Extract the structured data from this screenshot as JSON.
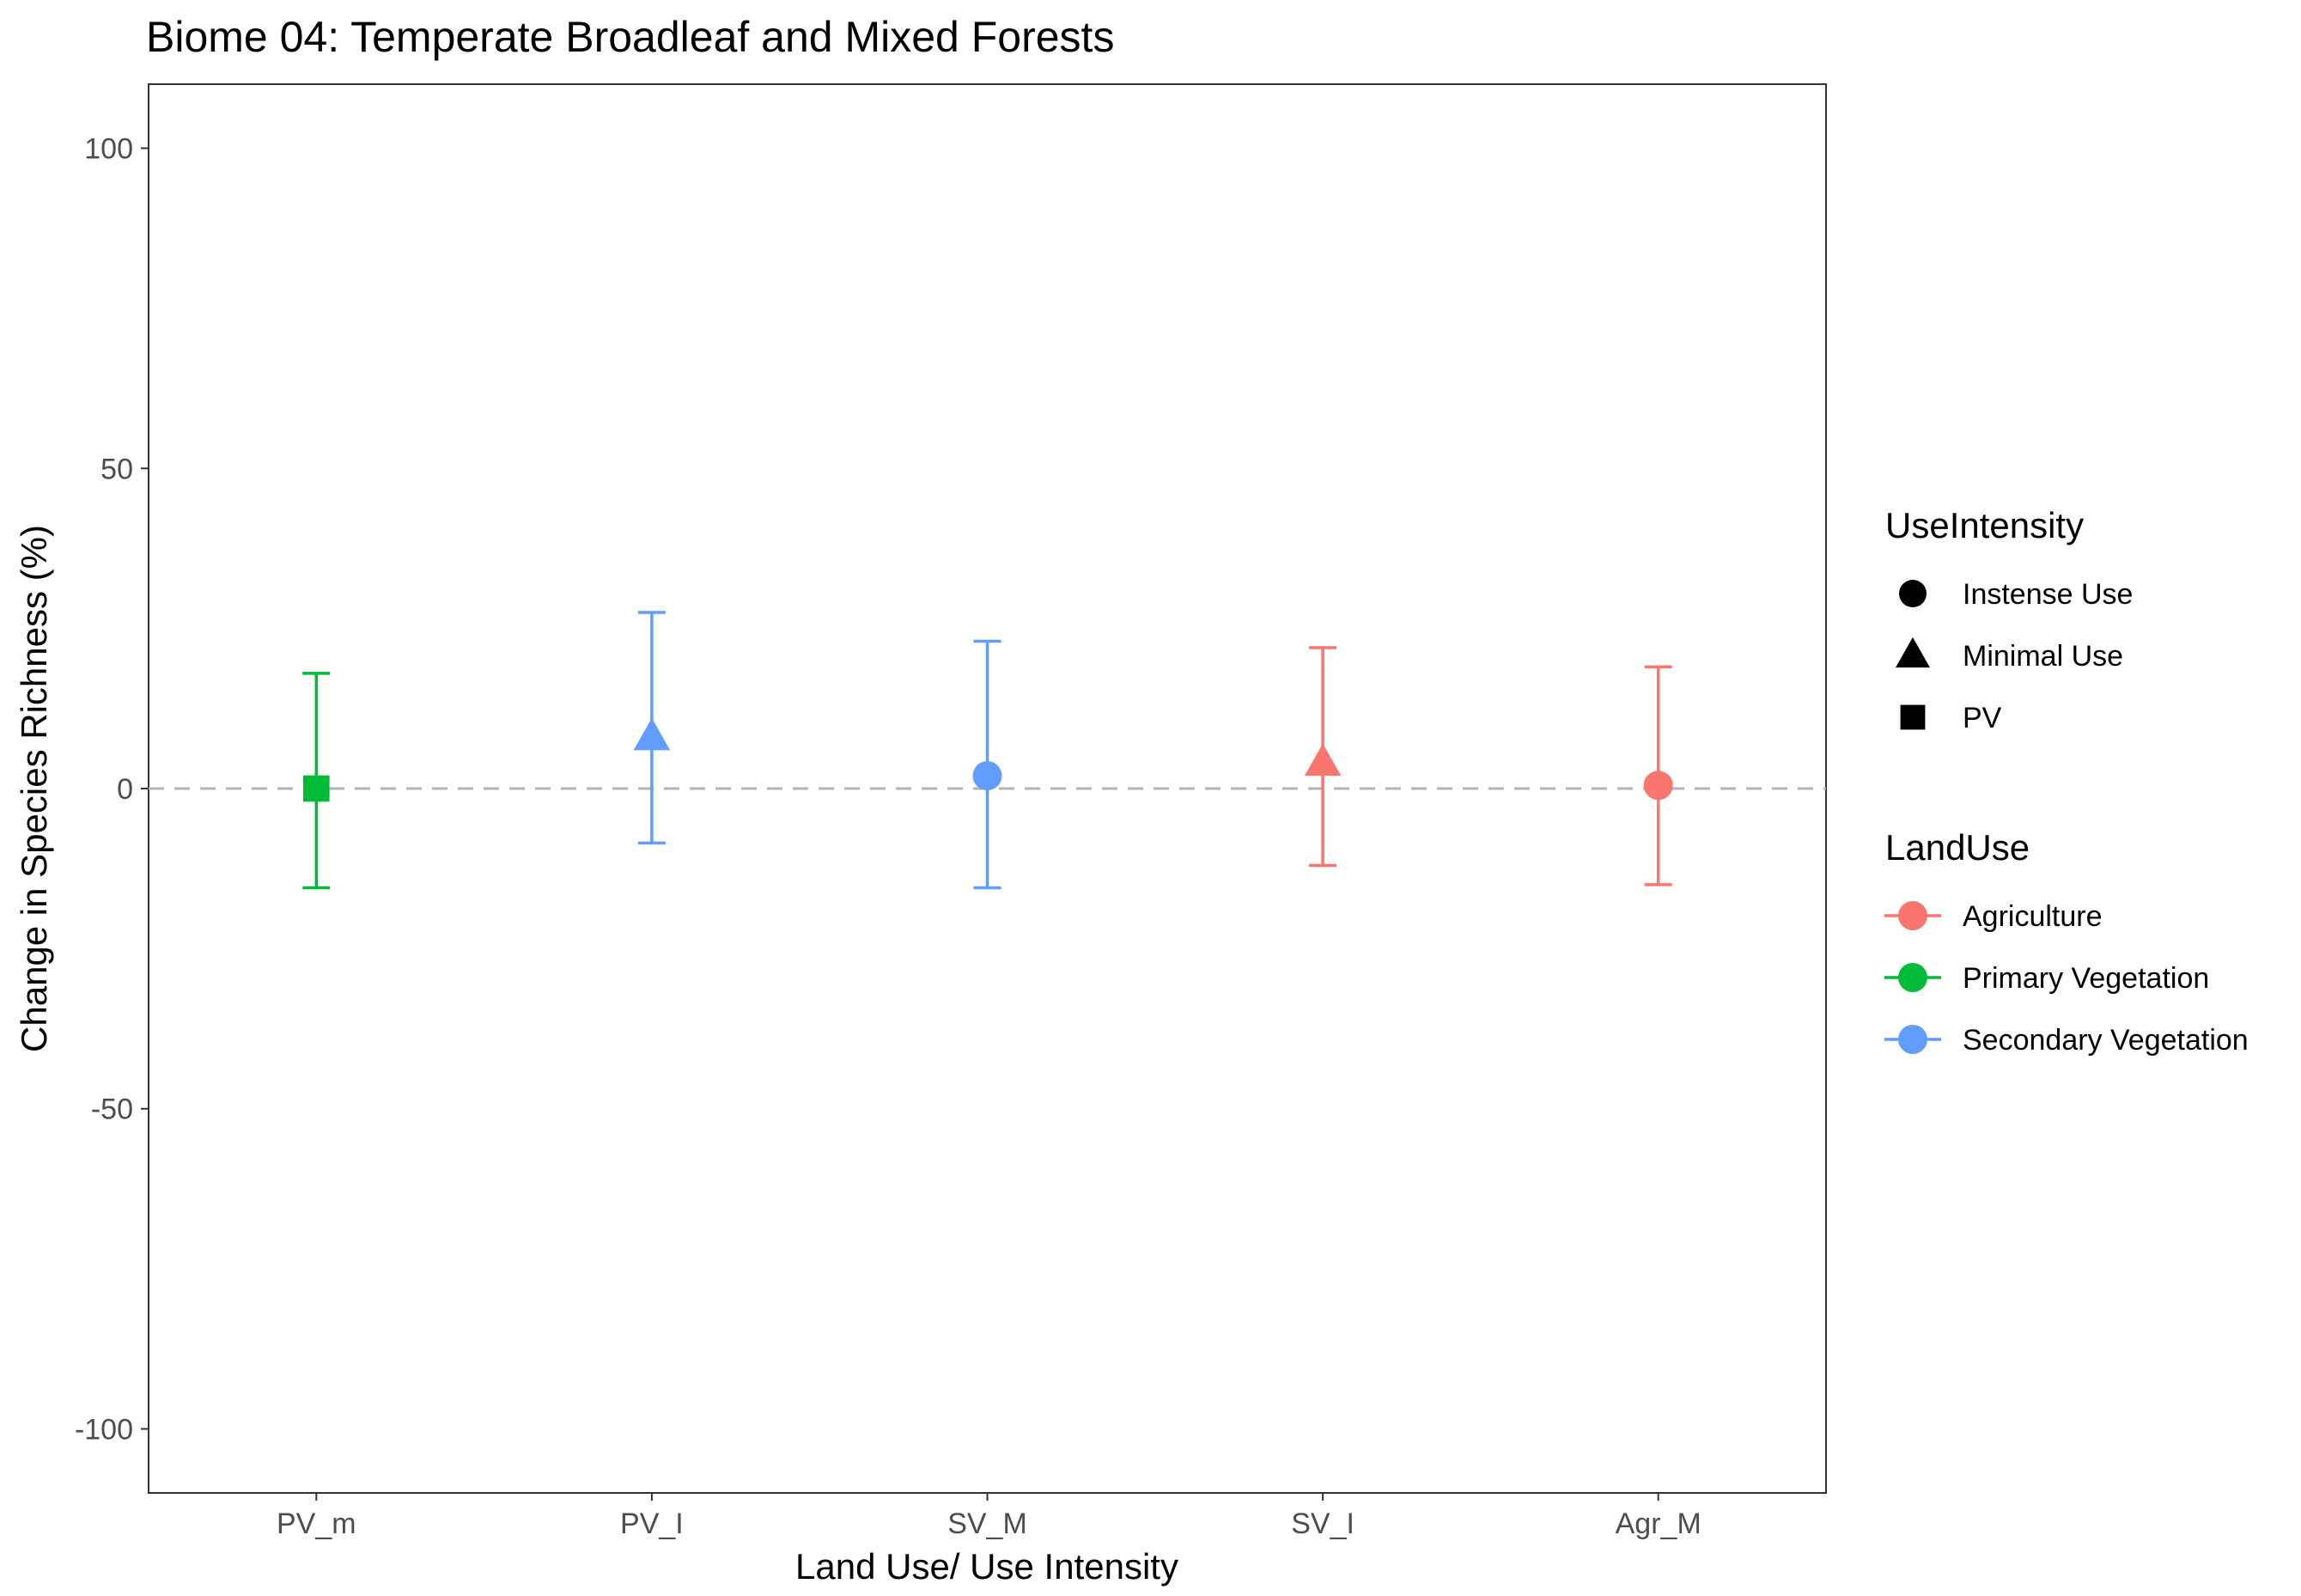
{
  "chart_data": {
    "type": "errorbar",
    "title": "Biome 04: Temperate Broadleaf and Mixed Forests",
    "xlabel": "Land Use/ Use Intensity",
    "ylabel": "Change in Species Richness (%)",
    "ylim": [
      -110,
      110
    ],
    "yticks": [
      -100,
      -50,
      0,
      50,
      100
    ],
    "ytick_labels": [
      "-100",
      "-50",
      "0",
      "50",
      "100"
    ],
    "reference_line": {
      "y": 0,
      "style": "dashed",
      "color": "#b3b3b3"
    },
    "grid": false,
    "legend_position": "right",
    "categories": [
      "PV_m",
      "PV_I",
      "SV_M",
      "SV_I",
      "Agr_M"
    ],
    "points": [
      {
        "category": "PV_m",
        "land_use": "Primary Vegetation",
        "use_intensity": "PV",
        "y": 0,
        "ymin": -15.5,
        "ymax": 18
      },
      {
        "category": "PV_I",
        "land_use": "Secondary Vegetation",
        "use_intensity": "Minimal Use",
        "y": 8,
        "ymin": -8.5,
        "ymax": 27.5
      },
      {
        "category": "SV_M",
        "land_use": "Secondary Vegetation",
        "use_intensity": "Instense Use",
        "y": 2,
        "ymin": -15.5,
        "ymax": 23
      },
      {
        "category": "SV_I",
        "land_use": "Agriculture",
        "use_intensity": "Minimal Use",
        "y": 4,
        "ymin": -12,
        "ymax": 22
      },
      {
        "category": "Agr_M",
        "land_use": "Agriculture",
        "use_intensity": "Instense Use",
        "y": 0.5,
        "ymin": -15,
        "ymax": 19
      }
    ],
    "legends": {
      "shape": {
        "title": "UseIntensity",
        "items": [
          {
            "label": "Instense Use",
            "shape": "circle"
          },
          {
            "label": "Minimal Use",
            "shape": "triangle"
          },
          {
            "label": "PV",
            "shape": "square"
          }
        ]
      },
      "color": {
        "title": "LandUse",
        "items": [
          {
            "label": "Agriculture",
            "color": "#F8766D"
          },
          {
            "label": "Primary Vegetation",
            "color": "#00BA38"
          },
          {
            "label": "Secondary Vegetation",
            "color": "#619CFF"
          }
        ]
      }
    }
  }
}
